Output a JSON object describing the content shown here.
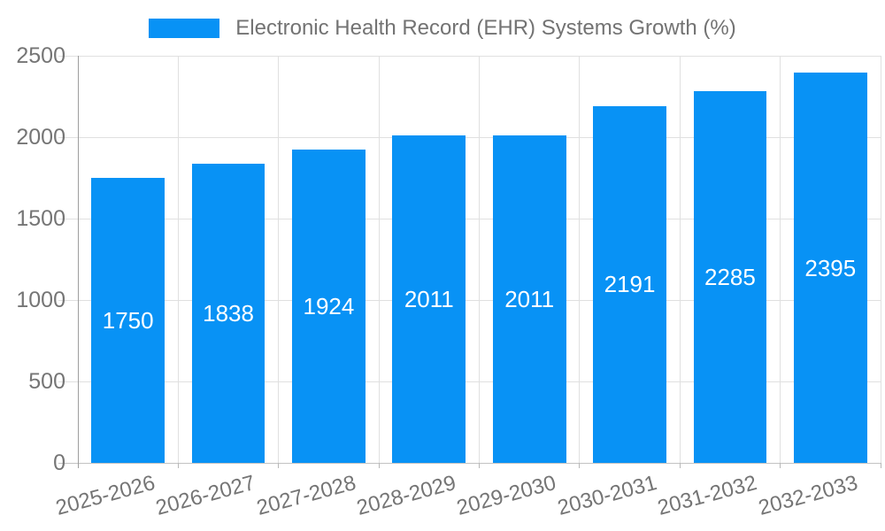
{
  "chart_data": {
    "type": "bar",
    "title": "",
    "legend_label": "Electronic Health Record (EHR) Systems Growth (%)",
    "legend_position": "top-center",
    "categories": [
      "2025-2026",
      "2026-2027",
      "2027-2028",
      "2028-2029",
      "2029-2030",
      "2030-2031",
      "2031-2032",
      "2032-2033"
    ],
    "values": [
      1750,
      1838,
      1924,
      2011,
      2011,
      2191,
      2285,
      2395
    ],
    "bar_value_labels": true,
    "xlabel": "",
    "ylabel": "",
    "ylim": [
      0,
      2500
    ],
    "yticks": [
      0,
      500,
      1000,
      1500,
      2000,
      2500
    ],
    "grid": true,
    "xtick_rotation_deg": 15,
    "colors": {
      "bar": "#0892F5",
      "grid": "#E0E0E0",
      "axis": "#9E9E9E",
      "baseline": "#C2C2C2",
      "x_tick": "#B8B8B8",
      "tick_label_text": "#757575",
      "legend_text": "#737373",
      "bar_label_text": "#FFFFFF",
      "background": "#FFFFFF"
    }
  }
}
